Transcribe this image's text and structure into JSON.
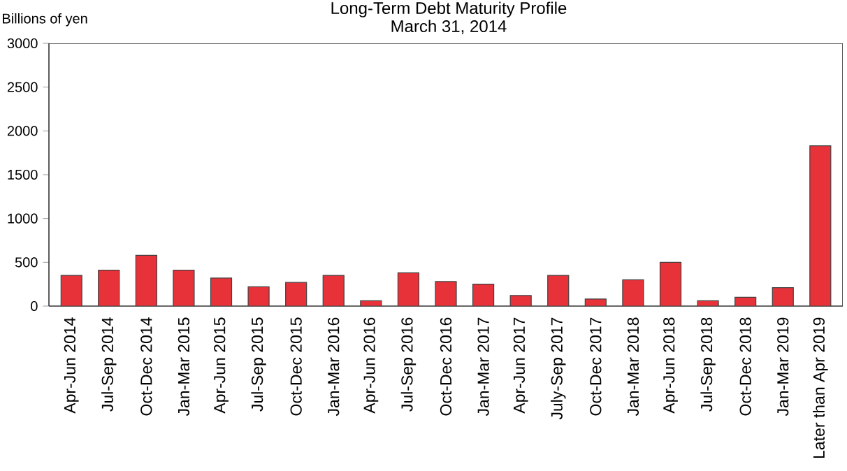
{
  "chart_data": {
    "type": "bar",
    "title": "Long-Term Debt Maturity Profile",
    "subtitle": "March 31, 2014",
    "ylabel": "Billions of yen",
    "categories": [
      "Apr-Jun 2014",
      "Jul-Sep 2014",
      "Oct-Dec 2014",
      "Jan-Mar 2015",
      "Apr-Jun 2015",
      "Jul-Sep 2015",
      "Oct-Dec 2015",
      "Jan-Mar 2016",
      "Apr-Jun 2016",
      "Jul-Sep 2016",
      "Oct-Dec 2016",
      "Jan-Mar 2017",
      "Apr-Jun 2017",
      "July-Sep 2017",
      "Oct-Dec 2017",
      "Jan-Mar 2018",
      "Apr-Jun 2018",
      "Jul-Sep 2018",
      "Oct-Dec 2018",
      "Jan-Mar 2019",
      "Later than Apr 2019"
    ],
    "values": [
      350,
      410,
      580,
      410,
      320,
      220,
      270,
      350,
      60,
      380,
      280,
      250,
      120,
      350,
      80,
      300,
      500,
      60,
      100,
      210,
      1830
    ],
    "color": "#e8323a",
    "ylim": [
      0,
      3000
    ],
    "yticks": [
      0,
      500,
      1000,
      1500,
      2000,
      2500,
      3000
    ],
    "grid": false
  }
}
